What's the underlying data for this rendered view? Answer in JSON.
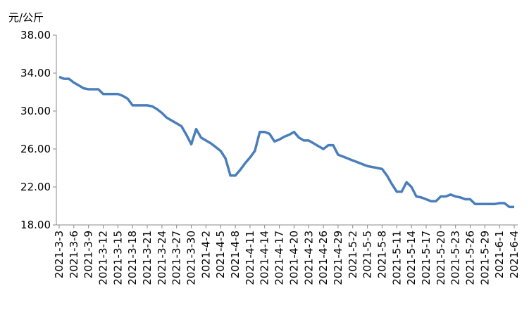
{
  "chart_data": {
    "type": "line",
    "y_label": "元/公斤",
    "categories": [
      "2021-3-3",
      null,
      null,
      "2021-3-6",
      null,
      null,
      "2021-3-9",
      null,
      null,
      "2021-3-12",
      null,
      null,
      "2021-3-15",
      null,
      null,
      "2021-3-18",
      null,
      null,
      "2021-3-21",
      null,
      null,
      "2021-3-24",
      null,
      null,
      "2021-3-27",
      null,
      null,
      "2021-3-30",
      null,
      null,
      "2021-4-2",
      null,
      null,
      "2021-4-5",
      null,
      null,
      "2021-4-8",
      null,
      null,
      "2021-4-11",
      null,
      null,
      "2021-4-14",
      null,
      null,
      "2021-4-17",
      null,
      null,
      "2021-4-20",
      null,
      null,
      "2021-4-23",
      null,
      null,
      "2021-4-26",
      null,
      null,
      "2021-4-29",
      null,
      null,
      "2021-5-2",
      null,
      null,
      "2021-5-5",
      null,
      null,
      "2021-5-8",
      null,
      null,
      "2021-5-11",
      null,
      null,
      "2021-5-14",
      null,
      null,
      "2021-5-17",
      null,
      null,
      "2021-5-20",
      null,
      null,
      "2021-5-23",
      null,
      null,
      "2021-5-26",
      null,
      null,
      "2021-5-29",
      null,
      null,
      "2021-6-1",
      null,
      null,
      "2021-6-4"
    ],
    "values": [
      33.6,
      33.4,
      33.4,
      33.0,
      32.7,
      32.4,
      32.3,
      32.3,
      32.3,
      31.8,
      31.8,
      31.8,
      31.8,
      31.6,
      31.3,
      30.6,
      30.6,
      30.6,
      30.6,
      30.5,
      30.2,
      29.8,
      29.3,
      29.0,
      28.7,
      28.4,
      27.5,
      26.5,
      28.1,
      27.2,
      26.9,
      26.6,
      26.2,
      25.8,
      25.0,
      23.2,
      23.2,
      23.8,
      24.5,
      25.1,
      25.8,
      27.8,
      27.8,
      27.6,
      26.8,
      27.0,
      27.3,
      27.5,
      27.8,
      27.2,
      26.9,
      26.9,
      26.6,
      26.3,
      26.0,
      26.4,
      26.4,
      25.4,
      25.2,
      25.0,
      24.8,
      24.6,
      24.4,
      24.2,
      24.1,
      24.0,
      23.9,
      23.2,
      22.3,
      21.5,
      21.5,
      22.5,
      22.0,
      21.0,
      20.9,
      20.7,
      20.5,
      20.5,
      21.0,
      21.0,
      21.2,
      21.0,
      20.9,
      20.7,
      20.7,
      20.2,
      20.2,
      20.2,
      20.2,
      20.2,
      20.3,
      20.3,
      19.9,
      19.9
    ],
    "color": "#4a7ebb",
    "ylim": [
      18,
      38
    ],
    "yticks": [
      {
        "value": 18,
        "label": "18.00"
      },
      {
        "value": 22,
        "label": "22.00"
      },
      {
        "value": 26,
        "label": "26.00"
      },
      {
        "value": 30,
        "label": "30.00"
      },
      {
        "value": 34,
        "label": "34.00"
      },
      {
        "value": 38,
        "label": "38.00"
      }
    ],
    "grid": false
  }
}
